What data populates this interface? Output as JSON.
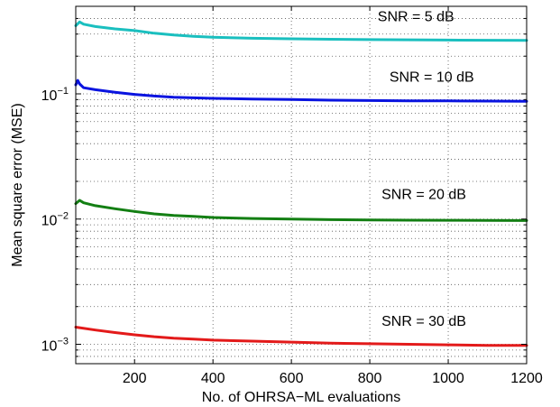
{
  "chart_data": {
    "type": "line",
    "title": "",
    "xlabel": "No. of OHRSA−ML evaluations",
    "ylabel": "Mean square error (MSE)",
    "xlim": [
      50,
      1200
    ],
    "ylim": [
      0.0007,
      0.5
    ],
    "y_scale": "log",
    "grid": true,
    "x_ticks": [
      {
        "value": 200,
        "label": "200"
      },
      {
        "value": 400,
        "label": "400"
      },
      {
        "value": 600,
        "label": "600"
      },
      {
        "value": 800,
        "label": "800"
      },
      {
        "value": 1000,
        "label": "1000"
      },
      {
        "value": 1200,
        "label": "1200"
      }
    ],
    "y_ticks": [
      {
        "value": 0.001,
        "base": "10",
        "exp": "−3"
      },
      {
        "value": 0.01,
        "base": "10",
        "exp": "−2"
      },
      {
        "value": 0.1,
        "base": "10",
        "exp": "−1"
      }
    ],
    "series": [
      {
        "name": "SNR = 5 dB",
        "color": "#1ABFBF",
        "x": [
          50,
          60,
          70,
          100,
          150,
          200,
          250,
          300,
          350,
          400,
          500,
          600,
          700,
          800,
          900,
          1000,
          1100,
          1200
        ],
        "y": [
          0.35,
          0.375,
          0.36,
          0.345,
          0.33,
          0.32,
          0.305,
          0.295,
          0.288,
          0.283,
          0.278,
          0.275,
          0.273,
          0.271,
          0.27,
          0.269,
          0.268,
          0.267
        ]
      },
      {
        "name": "SNR = 10 dB",
        "color": "#0A14E0",
        "x": [
          50,
          55,
          60,
          70,
          100,
          150,
          200,
          250,
          300,
          400,
          500,
          600,
          700,
          800,
          900,
          1000,
          1100,
          1200
        ],
        "y": [
          0.118,
          0.128,
          0.12,
          0.112,
          0.108,
          0.103,
          0.099,
          0.096,
          0.094,
          0.092,
          0.091,
          0.09,
          0.089,
          0.0885,
          0.088,
          0.0878,
          0.0875,
          0.0873
        ]
      },
      {
        "name": "SNR = 20 dB",
        "color": "#137F13",
        "x": [
          50,
          60,
          70,
          100,
          150,
          200,
          250,
          300,
          350,
          400,
          500,
          600,
          700,
          800,
          900,
          1000,
          1100,
          1200
        ],
        "y": [
          0.0133,
          0.0141,
          0.0135,
          0.0128,
          0.0121,
          0.0115,
          0.011,
          0.0107,
          0.0105,
          0.0103,
          0.0101,
          0.01,
          0.0099,
          0.00985,
          0.0098,
          0.00978,
          0.00975,
          0.00973
        ]
      },
      {
        "name": "SNR = 30 dB",
        "color": "#E31A1A",
        "x": [
          50,
          100,
          150,
          200,
          250,
          300,
          350,
          400,
          500,
          600,
          700,
          800,
          900,
          1000,
          1100,
          1200
        ],
        "y": [
          0.00137,
          0.0013,
          0.00124,
          0.00119,
          0.00115,
          0.00112,
          0.0011,
          0.00108,
          0.00106,
          0.00104,
          0.00102,
          0.00101,
          0.001,
          0.00099,
          0.00098,
          0.00098
        ]
      }
    ],
    "annotations": [
      {
        "text": "SNR = 5 dB",
        "x": 820,
        "y": 0.38
      },
      {
        "text": "SNR = 10 dB",
        "x": 850,
        "y": 0.125
      },
      {
        "text": "SNR = 20 dB",
        "x": 830,
        "y": 0.0145
      },
      {
        "text": "SNR = 30 dB",
        "x": 830,
        "y": 0.0014
      }
    ]
  }
}
